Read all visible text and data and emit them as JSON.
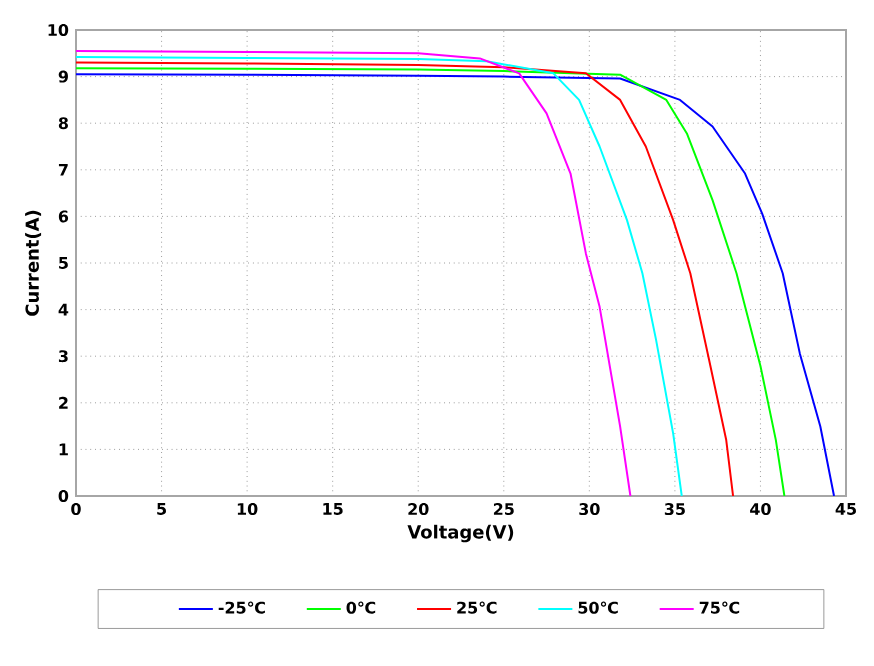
{
  "chart_data": {
    "type": "line",
    "xlabel": "Voltage(V)",
    "ylabel": "Current(A)",
    "xlim": [
      0,
      45
    ],
    "ylim": [
      0,
      10
    ],
    "xticks": [
      0,
      5,
      10,
      15,
      20,
      25,
      30,
      35,
      40,
      45
    ],
    "yticks": [
      0,
      1,
      2,
      3,
      4,
      5,
      6,
      7,
      8,
      9,
      10
    ],
    "grid": true,
    "legend": "bottom",
    "marker": "none",
    "line_style": "solid",
    "series": [
      {
        "name": "-25℃",
        "color": "#0000ff",
        "x": [
          0,
          10,
          20,
          25,
          31.8,
          35.3,
          37.2,
          39.1,
          40.1,
          41.3,
          42.3,
          43.5,
          44.3
        ],
        "values": [
          9.05,
          9.04,
          9.02,
          9.0,
          8.96,
          8.5,
          7.93,
          6.92,
          6.06,
          4.78,
          3.06,
          1.49,
          0
        ]
      },
      {
        "name": "0℃",
        "color": "#00ff00",
        "x": [
          0,
          10,
          20,
          25,
          31.8,
          34.5,
          35.7,
          37.2,
          38.6,
          40.0,
          40.9,
          41.4
        ],
        "values": [
          9.18,
          9.17,
          9.15,
          9.12,
          9.04,
          8.5,
          7.78,
          6.35,
          4.78,
          2.79,
          1.2,
          0
        ]
      },
      {
        "name": "25℃",
        "color": "#ff0000",
        "x": [
          0,
          10,
          20,
          25,
          29.8,
          31.8,
          33.3,
          34.9,
          35.9,
          37.0,
          38.0,
          38.4
        ],
        "values": [
          9.3,
          9.28,
          9.25,
          9.2,
          9.07,
          8.5,
          7.5,
          5.92,
          4.78,
          2.92,
          1.2,
          0
        ]
      },
      {
        "name": "50℃",
        "color": "#00ffff",
        "x": [
          0,
          10,
          20,
          24,
          27.9,
          29.4,
          30.6,
          32.2,
          33.1,
          33.9,
          34.9,
          35.4
        ],
        "values": [
          9.42,
          9.4,
          9.38,
          9.33,
          9.07,
          8.5,
          7.5,
          5.92,
          4.78,
          3.35,
          1.34,
          0
        ]
      },
      {
        "name": "75℃",
        "color": "#ff00ff",
        "x": [
          0,
          10,
          20,
          23.6,
          25.9,
          27.5,
          28.9,
          29.8,
          30.6,
          31.8,
          32.4
        ],
        "values": [
          9.55,
          9.53,
          9.5,
          9.39,
          9.07,
          8.21,
          6.92,
          5.2,
          4.06,
          1.49,
          0
        ]
      }
    ]
  }
}
